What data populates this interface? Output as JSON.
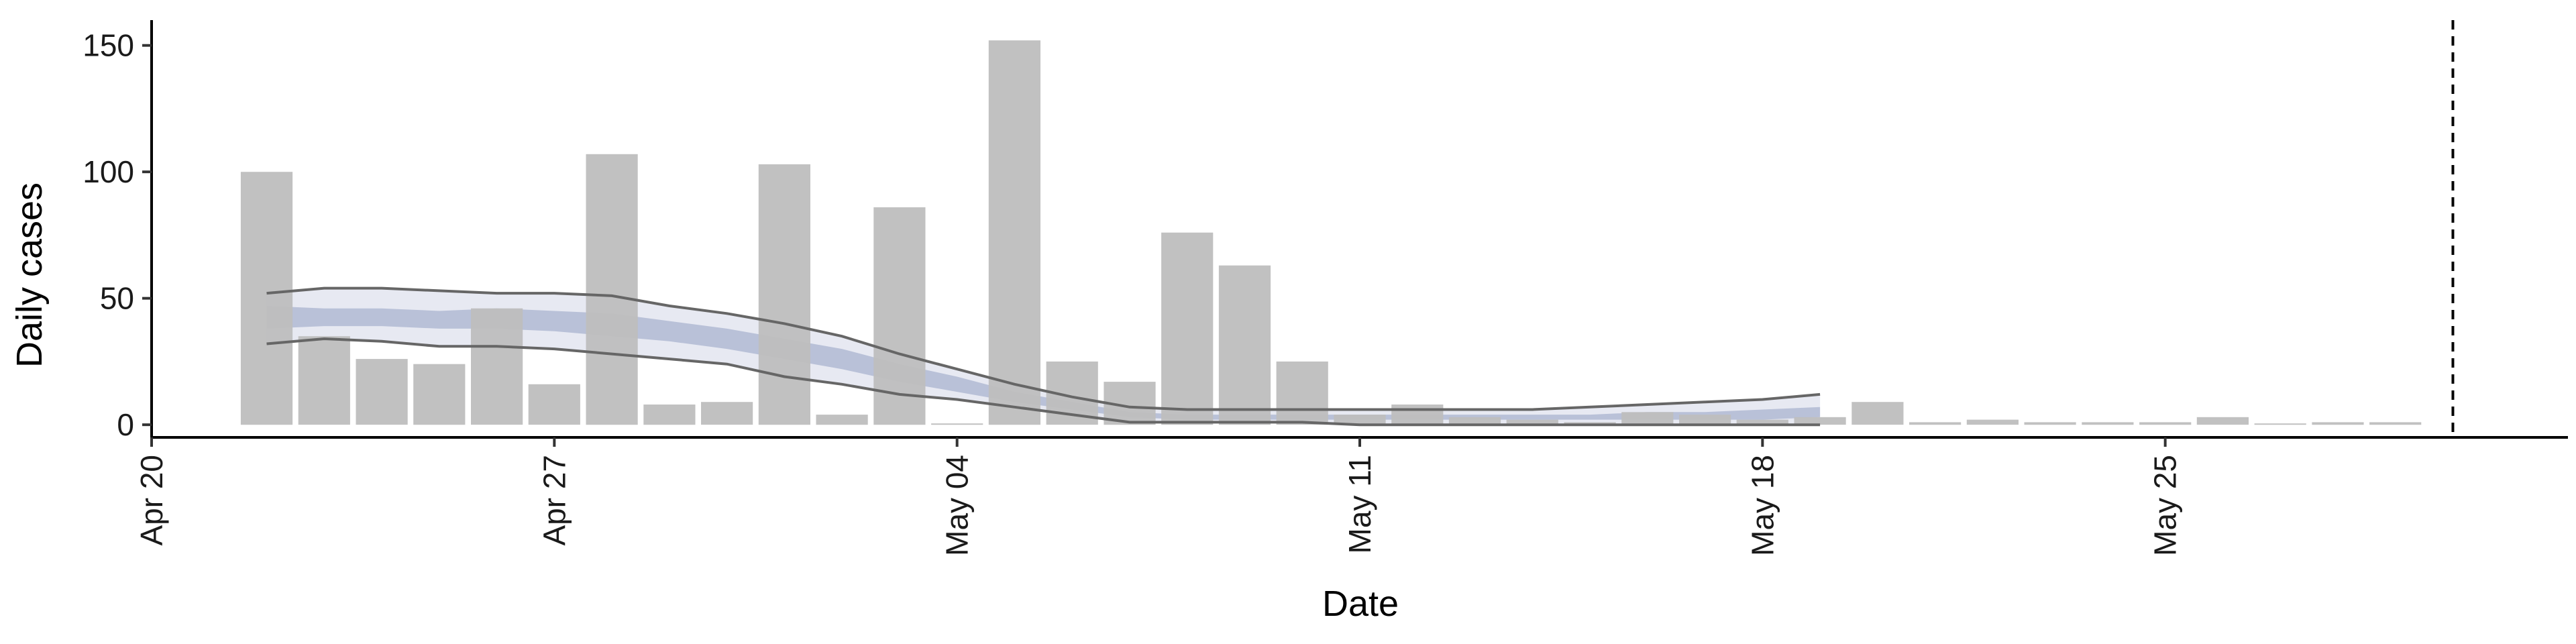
{
  "chart_data": {
    "type": "bar",
    "title": "",
    "xlabel": "Date",
    "ylabel": "Daily cases",
    "ylim": [
      -5,
      160
    ],
    "y_ticks": [
      0,
      50,
      100,
      150
    ],
    "x_range": [
      "2020-04-20",
      "2020-06-01"
    ],
    "x_ticks": [
      {
        "date": "2020-04-20",
        "label": "Apr 20"
      },
      {
        "date": "2020-04-27",
        "label": "Apr 27"
      },
      {
        "date": "2020-05-04",
        "label": "May 04"
      },
      {
        "date": "2020-05-11",
        "label": "May 11"
      },
      {
        "date": "2020-05-18",
        "label": "May 18"
      },
      {
        "date": "2020-05-25",
        "label": "May 25"
      }
    ],
    "grid": false,
    "legend": "none",
    "bar_color": "#bebebe",
    "bars": [
      {
        "date": "2020-04-22",
        "value": 100
      },
      {
        "date": "2020-04-23",
        "value": 35
      },
      {
        "date": "2020-04-24",
        "value": 26
      },
      {
        "date": "2020-04-25",
        "value": 24
      },
      {
        "date": "2020-04-26",
        "value": 46
      },
      {
        "date": "2020-04-27",
        "value": 16
      },
      {
        "date": "2020-04-28",
        "value": 107
      },
      {
        "date": "2020-04-29",
        "value": 8
      },
      {
        "date": "2020-04-30",
        "value": 9
      },
      {
        "date": "2020-05-01",
        "value": 103
      },
      {
        "date": "2020-05-02",
        "value": 4
      },
      {
        "date": "2020-05-03",
        "value": 86
      },
      {
        "date": "2020-05-04",
        "value": 0
      },
      {
        "date": "2020-05-05",
        "value": 152
      },
      {
        "date": "2020-05-06",
        "value": 25
      },
      {
        "date": "2020-05-07",
        "value": 17
      },
      {
        "date": "2020-05-08",
        "value": 76
      },
      {
        "date": "2020-05-09",
        "value": 63
      },
      {
        "date": "2020-05-10",
        "value": 25
      },
      {
        "date": "2020-05-11",
        "value": 4
      },
      {
        "date": "2020-05-12",
        "value": 8
      },
      {
        "date": "2020-05-13",
        "value": 3
      },
      {
        "date": "2020-05-14",
        "value": 2
      },
      {
        "date": "2020-05-15",
        "value": 1
      },
      {
        "date": "2020-05-16",
        "value": 5
      },
      {
        "date": "2020-05-17",
        "value": 4
      },
      {
        "date": "2020-05-18",
        "value": 2
      },
      {
        "date": "2020-05-19",
        "value": 3
      },
      {
        "date": "2020-05-20",
        "value": 9
      },
      {
        "date": "2020-05-21",
        "value": 1
      },
      {
        "date": "2020-05-22",
        "value": 2
      },
      {
        "date": "2020-05-23",
        "value": 1
      },
      {
        "date": "2020-05-24",
        "value": 1
      },
      {
        "date": "2020-05-25",
        "value": 1
      },
      {
        "date": "2020-05-26",
        "value": 3
      },
      {
        "date": "2020-05-27",
        "value": 0
      },
      {
        "date": "2020-05-28",
        "value": 1
      },
      {
        "date": "2020-05-29",
        "value": 1
      }
    ],
    "estimate": {
      "dates": [
        "2020-04-22",
        "2020-04-23",
        "2020-04-24",
        "2020-04-25",
        "2020-04-26",
        "2020-04-27",
        "2020-04-28",
        "2020-04-29",
        "2020-04-30",
        "2020-05-01",
        "2020-05-02",
        "2020-05-03",
        "2020-05-04",
        "2020-05-05",
        "2020-05-06",
        "2020-05-07",
        "2020-05-08",
        "2020-05-09",
        "2020-05-10",
        "2020-05-11",
        "2020-05-12",
        "2020-05-13",
        "2020-05-14",
        "2020-05-15",
        "2020-05-16",
        "2020-05-17",
        "2020-05-18",
        "2020-05-19"
      ],
      "outer_upper": [
        52,
        54,
        54,
        53,
        52,
        52,
        51,
        47,
        44,
        40,
        35,
        28,
        22,
        16,
        11,
        7,
        6,
        6,
        6,
        6,
        6,
        6,
        6,
        7,
        8,
        9,
        10,
        12
      ],
      "outer_lower": [
        32,
        34,
        33,
        31,
        31,
        30,
        28,
        26,
        24,
        19,
        16,
        12,
        10,
        7,
        4,
        1,
        1,
        1,
        1,
        0,
        0,
        0,
        0,
        0,
        0,
        0,
        0,
        0
      ],
      "inner_upper": [
        47,
        46,
        46,
        45,
        46,
        45,
        44,
        41,
        38,
        34,
        30,
        24,
        19,
        13,
        9,
        5,
        4,
        4,
        4,
        4,
        4,
        4,
        4,
        4,
        5,
        5,
        6,
        7
      ],
      "inner_lower": [
        38,
        39,
        39,
        38,
        38,
        37,
        35,
        33,
        30,
        26,
        22,
        17,
        13,
        9,
        6,
        3,
        2,
        2,
        2,
        2,
        2,
        2,
        2,
        2,
        2,
        2,
        2,
        3
      ],
      "outer_color": "#dfe2ee",
      "inner_color": "#b4bcd5",
      "line_color": "#666666"
    },
    "vline": {
      "date": "2020-05-30",
      "style": "dashed"
    }
  }
}
